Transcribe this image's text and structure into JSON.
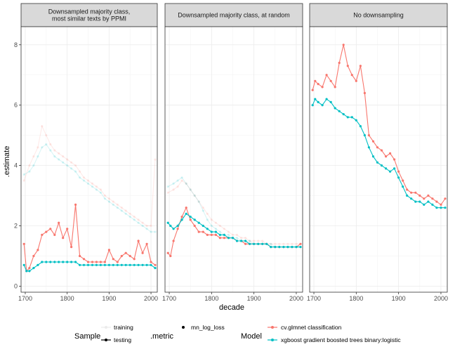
{
  "chart_data": {
    "type": "line",
    "xlabel": "decade",
    "ylabel": ".estimate",
    "xlim": [
      1690,
      2015
    ],
    "ylim": [
      -0.2,
      8.6
    ],
    "x_ticks": [
      1700,
      1800,
      1900,
      2000
    ],
    "y_ticks": [
      0,
      2,
      4,
      6,
      8
    ],
    "grid": true,
    "colors": {
      "cvglmnet": "#F8766D",
      "xgboost": "#00BFC4"
    },
    "facets": [
      {
        "label_lines": [
          "Downsampled majority class,",
          "most similar texts by PPMI"
        ],
        "series": [
          {
            "model": "cv.glmnet classification",
            "sample": "testing",
            "x": [
              1697,
              1703,
              1710,
              1720,
              1730,
              1740,
              1750,
              1760,
              1770,
              1780,
              1790,
              1800,
              1810,
              1820,
              1830,
              1840,
              1850,
              1860,
              1870,
              1880,
              1890,
              1900,
              1910,
              1920,
              1930,
              1940,
              1950,
              1960,
              1970,
              1980,
              1990,
              2000,
              2010
            ],
            "y": [
              1.4,
              0.5,
              0.6,
              1.0,
              1.2,
              1.7,
              1.8,
              1.9,
              1.7,
              2.1,
              1.6,
              1.9,
              1.3,
              2.7,
              1.0,
              0.9,
              0.8,
              0.8,
              0.8,
              0.8,
              0.8,
              1.2,
              0.9,
              0.8,
              1.0,
              1.1,
              1.0,
              0.9,
              1.5,
              1.1,
              1.4,
              0.8,
              0.7
            ]
          },
          {
            "model": "xgboost gradient boosted trees binary:logistic",
            "sample": "testing",
            "x": [
              1697,
              1703,
              1710,
              1720,
              1730,
              1740,
              1750,
              1760,
              1770,
              1780,
              1790,
              1800,
              1810,
              1820,
              1830,
              1840,
              1850,
              1860,
              1870,
              1880,
              1890,
              1900,
              1910,
              1920,
              1930,
              1940,
              1950,
              1960,
              1970,
              1980,
              1990,
              2000,
              2010
            ],
            "y": [
              0.7,
              0.5,
              0.5,
              0.6,
              0.7,
              0.8,
              0.8,
              0.8,
              0.8,
              0.8,
              0.8,
              0.8,
              0.8,
              0.8,
              0.7,
              0.7,
              0.7,
              0.7,
              0.7,
              0.7,
              0.7,
              0.7,
              0.7,
              0.7,
              0.7,
              0.7,
              0.7,
              0.7,
              0.7,
              0.7,
              0.7,
              0.7,
              0.6
            ]
          },
          {
            "model": "cv.glmnet classification",
            "sample": "training",
            "x": [
              1697,
              1710,
              1720,
              1730,
              1740,
              1750,
              1760,
              1770,
              1780,
              1790,
              1800,
              1810,
              1820,
              1830,
              1840,
              1850,
              1860,
              1870,
              1880,
              1890,
              1900,
              1910,
              1920,
              1930,
              1940,
              1950,
              1960,
              1970,
              1980,
              1990,
              2000,
              2010
            ],
            "y": [
              3.5,
              4.0,
              4.3,
              4.6,
              5.3,
              5.0,
              4.7,
              4.5,
              4.4,
              4.3,
              4.2,
              4.1,
              4.0,
              3.8,
              3.6,
              3.5,
              3.4,
              3.3,
              3.2,
              3.0,
              2.9,
              2.8,
              2.7,
              2.6,
              2.5,
              2.4,
              2.3,
              2.2,
              2.1,
              2.0,
              2.0,
              4.2
            ]
          },
          {
            "model": "xgboost gradient boosted trees binary:logistic",
            "sample": "training",
            "x": [
              1697,
              1710,
              1720,
              1730,
              1740,
              1750,
              1760,
              1770,
              1780,
              1790,
              1800,
              1810,
              1820,
              1830,
              1840,
              1850,
              1860,
              1870,
              1880,
              1890,
              1900,
              1910,
              1920,
              1930,
              1940,
              1950,
              1960,
              1970,
              1980,
              1990,
              2000,
              2010
            ],
            "y": [
              3.7,
              3.8,
              4.0,
              4.3,
              4.6,
              4.7,
              4.5,
              4.3,
              4.2,
              4.1,
              4.0,
              3.9,
              3.8,
              3.6,
              3.5,
              3.4,
              3.3,
              3.2,
              3.1,
              2.9,
              2.8,
              2.7,
              2.6,
              2.5,
              2.4,
              2.3,
              2.2,
              2.1,
              2.0,
              1.9,
              1.8,
              1.8
            ]
          }
        ]
      },
      {
        "label_lines": [
          "Downsampled majority class, at random"
        ],
        "series": [
          {
            "model": "cv.glmnet classification",
            "sample": "testing",
            "x": [
              1697,
              1703,
              1710,
              1720,
              1730,
              1740,
              1750,
              1760,
              1770,
              1780,
              1790,
              1800,
              1810,
              1820,
              1830,
              1840,
              1850,
              1860,
              1870,
              1880,
              1890,
              1900,
              1910,
              1920,
              1930,
              1940,
              1950,
              1960,
              1970,
              1980,
              1990,
              2000,
              2010
            ],
            "y": [
              1.1,
              1.0,
              1.5,
              1.9,
              2.3,
              2.6,
              2.2,
              2.0,
              1.8,
              1.8,
              1.7,
              1.7,
              1.7,
              1.6,
              1.6,
              1.6,
              1.6,
              1.5,
              1.5,
              1.4,
              1.4,
              1.4,
              1.4,
              1.4,
              1.4,
              1.3,
              1.3,
              1.3,
              1.3,
              1.3,
              1.3,
              1.3,
              1.4
            ]
          },
          {
            "model": "xgboost gradient boosted trees binary:logistic",
            "sample": "testing",
            "x": [
              1697,
              1703,
              1710,
              1720,
              1730,
              1740,
              1750,
              1760,
              1770,
              1780,
              1790,
              1800,
              1810,
              1820,
              1830,
              1840,
              1850,
              1860,
              1870,
              1880,
              1890,
              1900,
              1910,
              1920,
              1930,
              1940,
              1950,
              1960,
              1970,
              1980,
              1990,
              2000,
              2010
            ],
            "y": [
              2.1,
              2.0,
              1.9,
              2.0,
              2.2,
              2.4,
              2.3,
              2.2,
              2.1,
              2.0,
              1.9,
              1.8,
              1.8,
              1.7,
              1.7,
              1.6,
              1.6,
              1.5,
              1.5,
              1.5,
              1.4,
              1.4,
              1.4,
              1.4,
              1.4,
              1.3,
              1.3,
              1.3,
              1.3,
              1.3,
              1.3,
              1.3,
              1.3
            ]
          },
          {
            "model": "cv.glmnet classification",
            "sample": "training",
            "x": [
              1697,
              1710,
              1720,
              1730,
              1740,
              1750,
              1760,
              1770,
              1780,
              1790,
              1800,
              1810,
              1820,
              1830,
              1840,
              1850,
              1860,
              1870,
              1880,
              1890,
              1900,
              1910,
              1920,
              1930,
              1940,
              1950,
              1960,
              1970,
              1980,
              1990,
              2000,
              2010
            ],
            "y": [
              3.1,
              3.2,
              3.3,
              3.5,
              3.4,
              3.2,
              3.0,
              2.8,
              2.6,
              2.4,
              2.2,
              2.1,
              2.0,
              1.9,
              1.8,
              1.7,
              1.7,
              1.6,
              1.6,
              1.5,
              1.5,
              1.5,
              1.5,
              1.4,
              1.4,
              1.4,
              1.4,
              1.4,
              1.4,
              1.4,
              1.4,
              1.4
            ]
          },
          {
            "model": "xgboost gradient boosted trees binary:logistic",
            "sample": "training",
            "x": [
              1697,
              1710,
              1720,
              1730,
              1740,
              1750,
              1760,
              1770,
              1780,
              1790,
              1800,
              1810,
              1820,
              1830,
              1840,
              1850,
              1860,
              1870,
              1880,
              1890,
              1900,
              1910,
              1920,
              1930,
              1940,
              1950,
              1960,
              1970,
              1980,
              1990,
              2000,
              2010
            ],
            "y": [
              3.3,
              3.4,
              3.5,
              3.6,
              3.4,
              3.2,
              3.0,
              2.8,
              2.5,
              2.2,
              2.0,
              1.9,
              1.8,
              1.7,
              1.7,
              1.6,
              1.6,
              1.5,
              1.5,
              1.5,
              1.4,
              1.4,
              1.4,
              1.4,
              1.4,
              1.3,
              1.3,
              1.3,
              1.3,
              1.3,
              1.3,
              1.3
            ]
          }
        ]
      },
      {
        "label_lines": [
          "No downsampling"
        ],
        "series": [
          {
            "model": "cv.glmnet classification",
            "sample": "testing",
            "x": [
              1697,
              1703,
              1710,
              1720,
              1730,
              1740,
              1750,
              1760,
              1770,
              1780,
              1790,
              1800,
              1810,
              1820,
              1830,
              1840,
              1850,
              1860,
              1870,
              1880,
              1890,
              1900,
              1910,
              1920,
              1930,
              1940,
              1950,
              1960,
              1970,
              1980,
              1990,
              2000,
              2010
            ],
            "y": [
              6.5,
              6.8,
              6.7,
              6.6,
              7.0,
              6.8,
              6.6,
              7.4,
              8.0,
              7.3,
              7.0,
              6.8,
              7.3,
              6.4,
              5.0,
              4.8,
              4.6,
              4.5,
              4.3,
              4.4,
              4.2,
              3.8,
              3.5,
              3.2,
              3.1,
              3.1,
              3.0,
              2.9,
              3.0,
              2.9,
              2.8,
              2.7,
              2.9
            ]
          },
          {
            "model": "xgboost gradient boosted trees binary:logistic",
            "sample": "testing",
            "x": [
              1697,
              1703,
              1710,
              1720,
              1730,
              1740,
              1750,
              1760,
              1770,
              1780,
              1790,
              1800,
              1810,
              1820,
              1830,
              1840,
              1850,
              1860,
              1870,
              1880,
              1890,
              1900,
              1910,
              1920,
              1930,
              1940,
              1950,
              1960,
              1970,
              1980,
              1990,
              2000,
              2010
            ],
            "y": [
              6.0,
              6.2,
              6.1,
              6.0,
              6.2,
              6.1,
              5.9,
              5.8,
              5.7,
              5.6,
              5.6,
              5.5,
              5.3,
              5.0,
              4.6,
              4.3,
              4.1,
              4.0,
              3.9,
              3.8,
              3.9,
              3.6,
              3.3,
              3.0,
              2.9,
              2.8,
              2.8,
              2.7,
              2.8,
              2.7,
              2.6,
              2.6,
              2.6
            ]
          }
        ]
      }
    ],
    "legend": {
      "placement": "bottom",
      "sample_title": "Sample",
      "sample_items": [
        "training",
        "testing"
      ],
      "metric_title": ".metric",
      "metric_items": [
        "mn_log_loss"
      ],
      "model_title": "Model",
      "model_items": [
        "cv.glmnet classification",
        "xgboost gradient boosted trees binary:logistic"
      ]
    }
  }
}
